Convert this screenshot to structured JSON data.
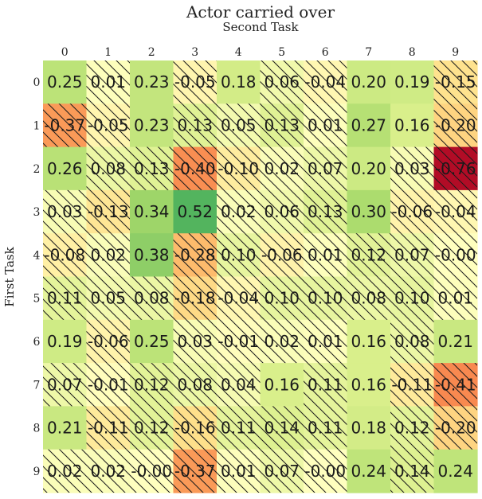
{
  "chart_data": {
    "type": "heatmap",
    "title": "Actor carried over",
    "xlabel": "Second Task",
    "ylabel": "First Task",
    "x_categories": [
      "0",
      "1",
      "2",
      "3",
      "4",
      "5",
      "6",
      "7",
      "8",
      "9"
    ],
    "y_categories": [
      "0",
      "1",
      "2",
      "3",
      "4",
      "5",
      "6",
      "7",
      "8",
      "9"
    ],
    "values": [
      [
        0.25,
        0.01,
        0.23,
        -0.05,
        0.18,
        0.06,
        -0.04,
        0.2,
        0.19,
        -0.15
      ],
      [
        -0.37,
        -0.05,
        0.23,
        0.13,
        0.05,
        0.13,
        0.01,
        0.27,
        0.16,
        -0.2
      ],
      [
        0.26,
        0.08,
        0.13,
        -0.4,
        -0.1,
        0.02,
        0.07,
        0.2,
        0.03,
        -0.76
      ],
      [
        0.03,
        -0.13,
        0.34,
        0.52,
        0.02,
        0.06,
        0.13,
        0.3,
        -0.06,
        -0.04
      ],
      [
        -0.08,
        0.02,
        0.38,
        -0.28,
        0.1,
        -0.06,
        0.01,
        0.12,
        0.07,
        -0.0
      ],
      [
        0.11,
        0.05,
        0.08,
        -0.18,
        -0.04,
        0.1,
        0.1,
        0.08,
        0.1,
        0.01
      ],
      [
        0.19,
        -0.06,
        0.25,
        0.03,
        -0.01,
        0.02,
        0.01,
        0.16,
        0.08,
        0.21
      ],
      [
        0.07,
        -0.01,
        0.12,
        0.08,
        0.04,
        0.16,
        0.11,
        0.16,
        -0.11,
        -0.41
      ],
      [
        0.21,
        -0.11,
        0.12,
        -0.16,
        0.11,
        0.14,
        0.11,
        0.18,
        0.12,
        -0.2
      ],
      [
        0.02,
        0.02,
        -0.0,
        -0.37,
        0.01,
        0.07,
        -0.0,
        0.24,
        0.14,
        0.24
      ]
    ],
    "labels": [
      [
        "0.25",
        "0.01",
        "0.23",
        "-0.05",
        "0.18",
        "0.06",
        "-0.04",
        "0.20",
        "0.19",
        "-0.15"
      ],
      [
        "-0.37",
        "-0.05",
        "0.23",
        "0.13",
        "0.05",
        "0.13",
        "0.01",
        "0.27",
        "0.16",
        "-0.20"
      ],
      [
        "0.26",
        "0.08",
        "0.13",
        "-0.40",
        "-0.10",
        "0.02",
        "0.07",
        "0.20",
        "0.03",
        "-0.76"
      ],
      [
        "0.03",
        "-0.13",
        "0.34",
        "0.52",
        "0.02",
        "0.06",
        "0.13",
        "0.30",
        "-0.06",
        "-0.04"
      ],
      [
        "-0.08",
        "0.02",
        "0.38",
        "-0.28",
        "0.10",
        "-0.06",
        "0.01",
        "0.12",
        "0.07",
        "-0.00"
      ],
      [
        "0.11",
        "0.05",
        "0.08",
        "-0.18",
        "-0.04",
        "0.10",
        "0.10",
        "0.08",
        "0.10",
        "0.01"
      ],
      [
        "0.19",
        "-0.06",
        "0.25",
        "0.03",
        "-0.01",
        "0.02",
        "0.01",
        "0.16",
        "0.08",
        "0.21"
      ],
      [
        "0.07",
        "-0.01",
        "0.12",
        "0.08",
        "0.04",
        "0.16",
        "0.11",
        "0.16",
        "-0.11",
        "-0.41"
      ],
      [
        "0.21",
        "-0.11",
        "0.12",
        "-0.16",
        "0.11",
        "0.14",
        "0.11",
        "0.18",
        "0.12",
        "-0.20"
      ],
      [
        "0.02",
        "0.02",
        "-0.00",
        "-0.37",
        "0.01",
        "0.07",
        "-0.00",
        "0.24",
        "0.14",
        "0.24"
      ]
    ],
    "value_range": [
      -0.8,
      0.8
    ],
    "colormap": "RdYlGn",
    "x_tick_position": "top",
    "hatched_cells_rule": "value < 0.15 hatched with diagonal lines",
    "colorbar": false
  }
}
